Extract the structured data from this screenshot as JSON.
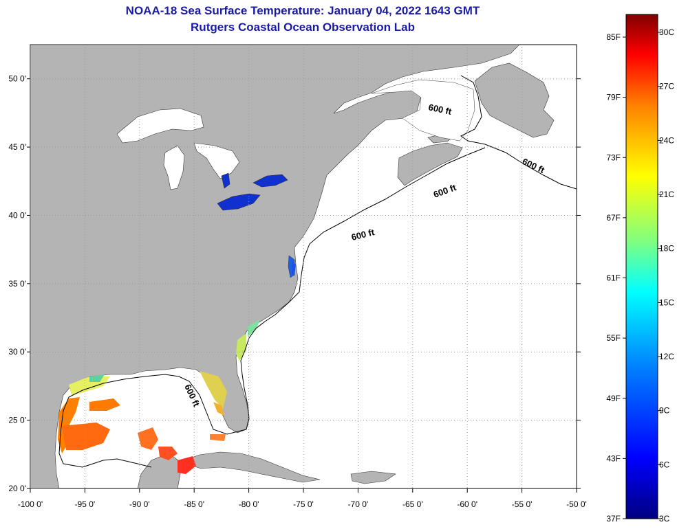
{
  "title": {
    "line1": "NOAA-18 Sea Surface Temperature:  January 04, 2022 1643 GMT",
    "line2": "Rutgers Coastal Ocean Observation Lab"
  },
  "axes": {
    "lon_ticks": [
      "-100 0'",
      "-95 0'",
      "-90 0'",
      "-85 0'",
      "-80 0'",
      "-75 0'",
      "-70 0'",
      "-65 0'",
      "-60 0'",
      "-55 0'",
      "-50 0'"
    ],
    "lat_ticks": [
      "50 0'",
      "45 0'",
      "40 0'",
      "35 0'",
      "30 0'",
      "25 0'",
      "20 0'"
    ],
    "lon_range": [
      -100,
      -50
    ],
    "lat_range": [
      20,
      52.5
    ]
  },
  "isobath_labels": [
    "600 ft",
    "600 ft",
    "600 ft",
    "600 ft",
    "600 ft"
  ],
  "colorbar": {
    "fahrenheit": [
      "85F",
      "79F",
      "73F",
      "67F",
      "61F",
      "55F",
      "49F",
      "43F",
      "37F"
    ],
    "celsius": [
      "30C",
      "27C",
      "24C",
      "21C",
      "18C",
      "15C",
      "12C",
      "9C",
      "6C",
      "3C"
    ],
    "colors": [
      "#7f0000",
      "#ff0000",
      "#ff8000",
      "#ffff00",
      "#80ff80",
      "#00ffff",
      "#0080ff",
      "#0000ff",
      "#00007f"
    ]
  },
  "colors": {
    "land": "#b4b4b4",
    "ocean": "#ffffff",
    "title": "#1a1aa8",
    "grid": "#999999"
  }
}
